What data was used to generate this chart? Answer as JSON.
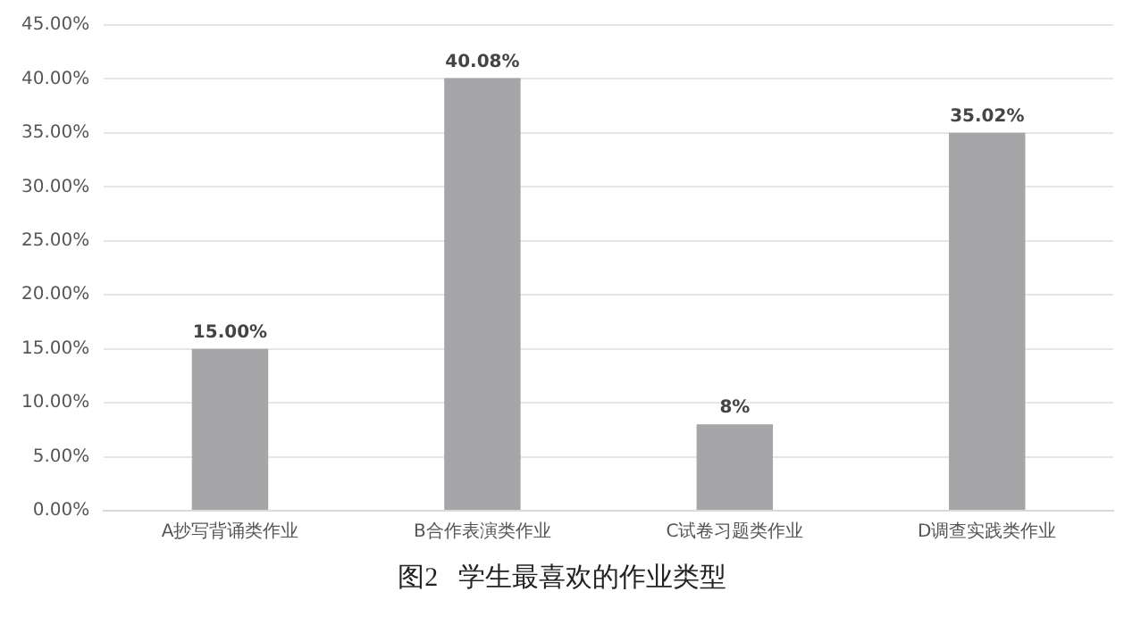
{
  "chart_data": {
    "type": "bar",
    "title": "图2   学生最喜欢的作业类型",
    "categories": [
      "A抄写背诵类作业",
      "B合作表演类作业",
      "C试卷习题类作业",
      "D调查实践类作业"
    ],
    "values": [
      15.0,
      40.08,
      8,
      35.02
    ],
    "color": "#a6a6a8",
    "value_labels": [
      "15.00%",
      "40.08%",
      "8%",
      "35.02%"
    ],
    "ylim": [
      0,
      45
    ],
    "yticks": [
      {
        "value": 0,
        "label": "0.00%"
      },
      {
        "value": 5,
        "label": "5.00%"
      },
      {
        "value": 10,
        "label": "10.00%"
      },
      {
        "value": 15,
        "label": "15.00%"
      },
      {
        "value": 20,
        "label": "20.00%"
      },
      {
        "value": 25,
        "label": "25.00%"
      },
      {
        "value": 30,
        "label": "30.00%"
      },
      {
        "value": 35,
        "label": "35.00%"
      },
      {
        "value": 40,
        "label": "40.00%"
      },
      {
        "value": 45,
        "label": "45.00%"
      }
    ],
    "grid": "y"
  }
}
